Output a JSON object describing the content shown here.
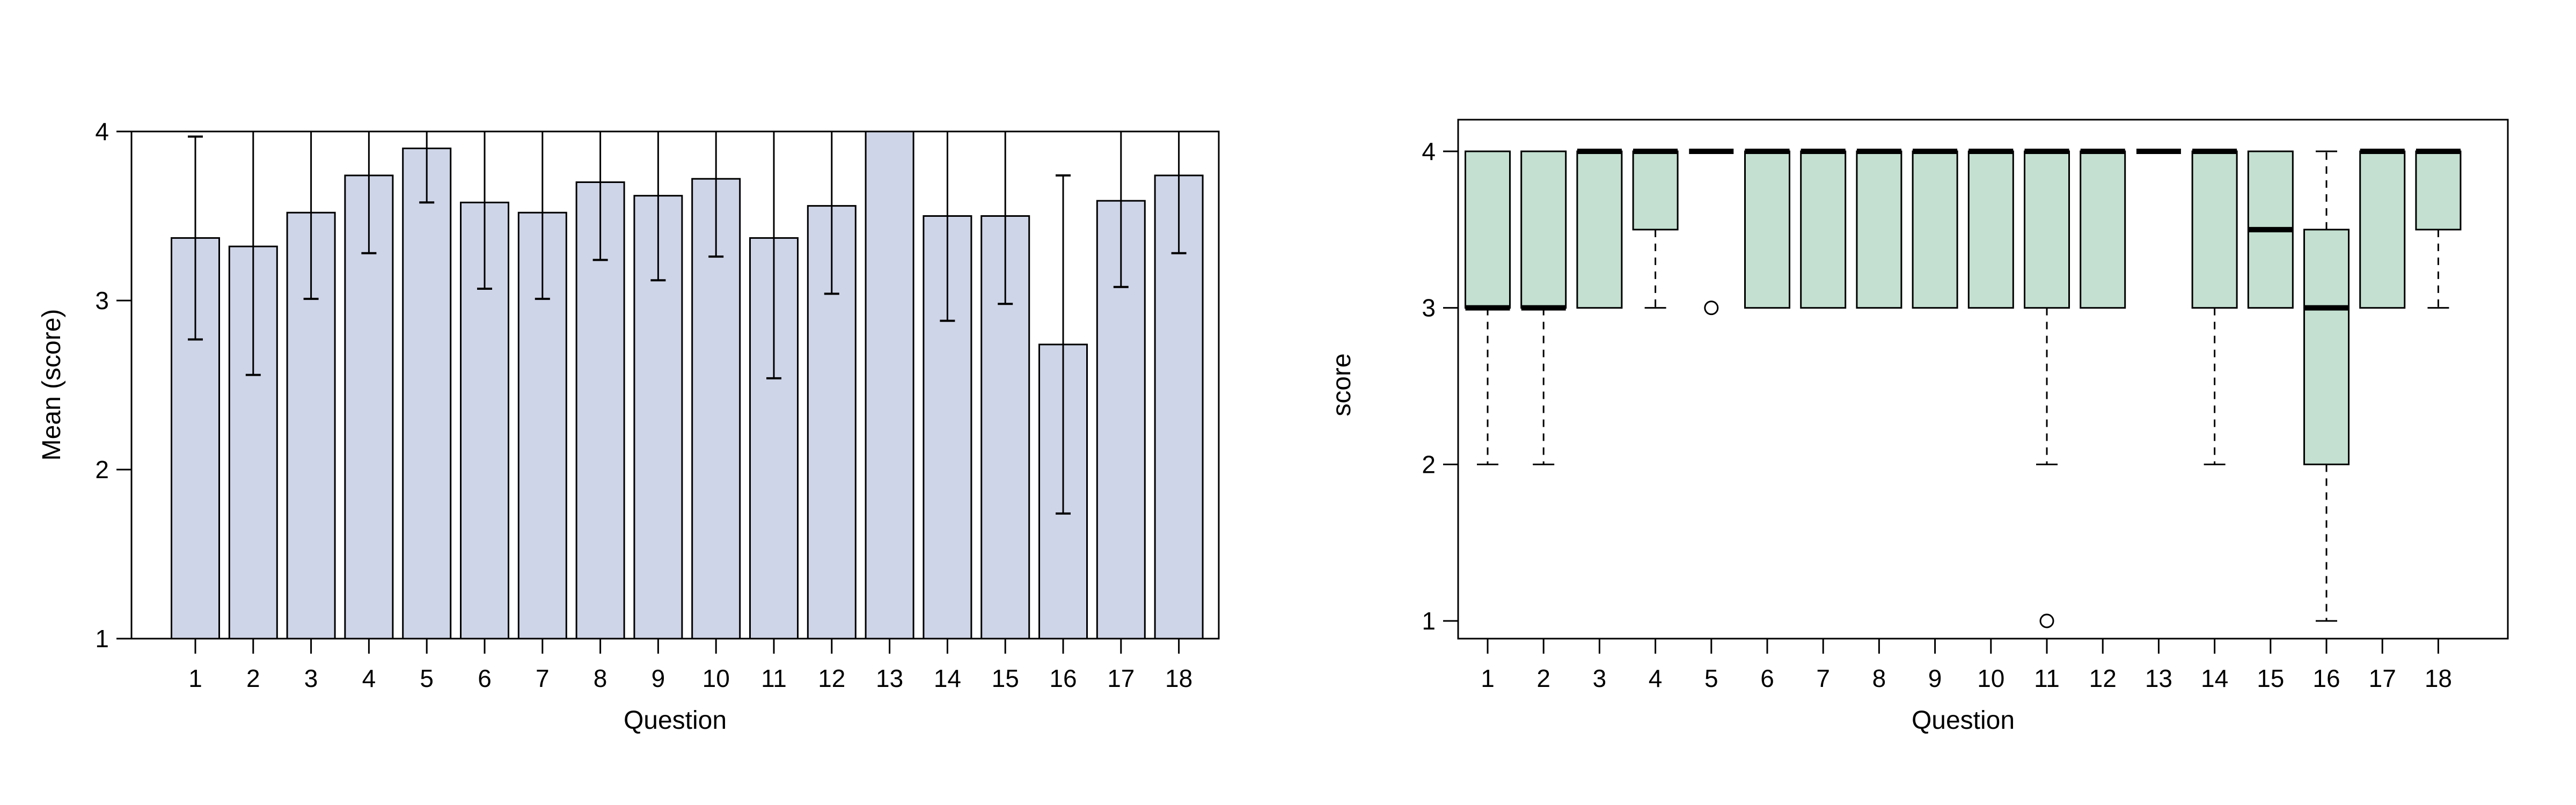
{
  "chart_data": [
    {
      "type": "bar",
      "title": "",
      "xlabel": "Question",
      "ylabel": "Mean (score)",
      "ylim": [
        1,
        4
      ],
      "yticks": [
        "1",
        "2",
        "3",
        "4"
      ],
      "categories": [
        "1",
        "2",
        "3",
        "4",
        "5",
        "6",
        "7",
        "8",
        "9",
        "10",
        "11",
        "12",
        "13",
        "14",
        "15",
        "16",
        "17",
        "18"
      ],
      "values": [
        3.37,
        3.32,
        3.52,
        3.74,
        3.9,
        3.58,
        3.52,
        3.7,
        3.62,
        3.72,
        3.37,
        3.56,
        4.0,
        3.5,
        3.5,
        2.74,
        3.59,
        3.74
      ],
      "error_lower": [
        2.77,
        2.56,
        3.01,
        3.28,
        3.58,
        3.07,
        3.01,
        3.24,
        3.12,
        3.26,
        2.54,
        3.04,
        4.0,
        2.88,
        2.98,
        1.74,
        3.08,
        3.28
      ],
      "error_upper": [
        3.97,
        4.08,
        4.03,
        4.2,
        4.22,
        4.09,
        4.03,
        4.16,
        4.12,
        4.18,
        4.2,
        4.08,
        4.0,
        4.12,
        4.02,
        3.74,
        4.1,
        4.2
      ],
      "bar_color": "#cfd5e8",
      "grid": false
    },
    {
      "type": "box",
      "title": "",
      "xlabel": "Question",
      "ylabel": "score",
      "ylim": [
        0.89,
        4.2
      ],
      "yticks": [
        "1",
        "2",
        "3",
        "4"
      ],
      "categories": [
        "1",
        "2",
        "3",
        "4",
        "5",
        "6",
        "7",
        "8",
        "9",
        "10",
        "11",
        "12",
        "13",
        "14",
        "15",
        "16",
        "17",
        "18"
      ],
      "boxes": [
        {
          "wmin": 2,
          "q1": 3,
          "med": 3,
          "q3": 4,
          "wmax": 4,
          "out": []
        },
        {
          "wmin": 2,
          "q1": 3,
          "med": 3,
          "q3": 4,
          "wmax": 4,
          "out": []
        },
        {
          "wmin": 3,
          "q1": 3,
          "med": 4,
          "q3": 4,
          "wmax": 4,
          "out": []
        },
        {
          "wmin": 3,
          "q1": 3.5,
          "med": 4,
          "q3": 4,
          "wmax": 4,
          "out": []
        },
        {
          "wmin": 4,
          "q1": 4,
          "med": 4,
          "q3": 4,
          "wmax": 4,
          "out": [
            3
          ]
        },
        {
          "wmin": 3,
          "q1": 3,
          "med": 4,
          "q3": 4,
          "wmax": 4,
          "out": []
        },
        {
          "wmin": 3,
          "q1": 3,
          "med": 4,
          "q3": 4,
          "wmax": 4,
          "out": []
        },
        {
          "wmin": 3,
          "q1": 3,
          "med": 4,
          "q3": 4,
          "wmax": 4,
          "out": []
        },
        {
          "wmin": 3,
          "q1": 3,
          "med": 4,
          "q3": 4,
          "wmax": 4,
          "out": []
        },
        {
          "wmin": 3,
          "q1": 3,
          "med": 4,
          "q3": 4,
          "wmax": 4,
          "out": []
        },
        {
          "wmin": 2,
          "q1": 3,
          "med": 4,
          "q3": 4,
          "wmax": 4,
          "out": [
            1
          ]
        },
        {
          "wmin": 3,
          "q1": 3,
          "med": 4,
          "q3": 4,
          "wmax": 4,
          "out": []
        },
        {
          "wmin": 4,
          "q1": 4,
          "med": 4,
          "q3": 4,
          "wmax": 4,
          "out": []
        },
        {
          "wmin": 2,
          "q1": 3,
          "med": 4,
          "q3": 4,
          "wmax": 4,
          "out": []
        },
        {
          "wmin": 3,
          "q1": 3,
          "med": 3.5,
          "q3": 4,
          "wmax": 4,
          "out": []
        },
        {
          "wmin": 1,
          "q1": 2,
          "med": 3,
          "q3": 3.5,
          "wmax": 4,
          "out": []
        },
        {
          "wmin": 3,
          "q1": 3,
          "med": 4,
          "q3": 4,
          "wmax": 4,
          "out": []
        },
        {
          "wmin": 3,
          "q1": 3.5,
          "med": 4,
          "q3": 4,
          "wmax": 4,
          "out": []
        }
      ],
      "box_color": "#c3e0d0",
      "grid": false
    }
  ]
}
